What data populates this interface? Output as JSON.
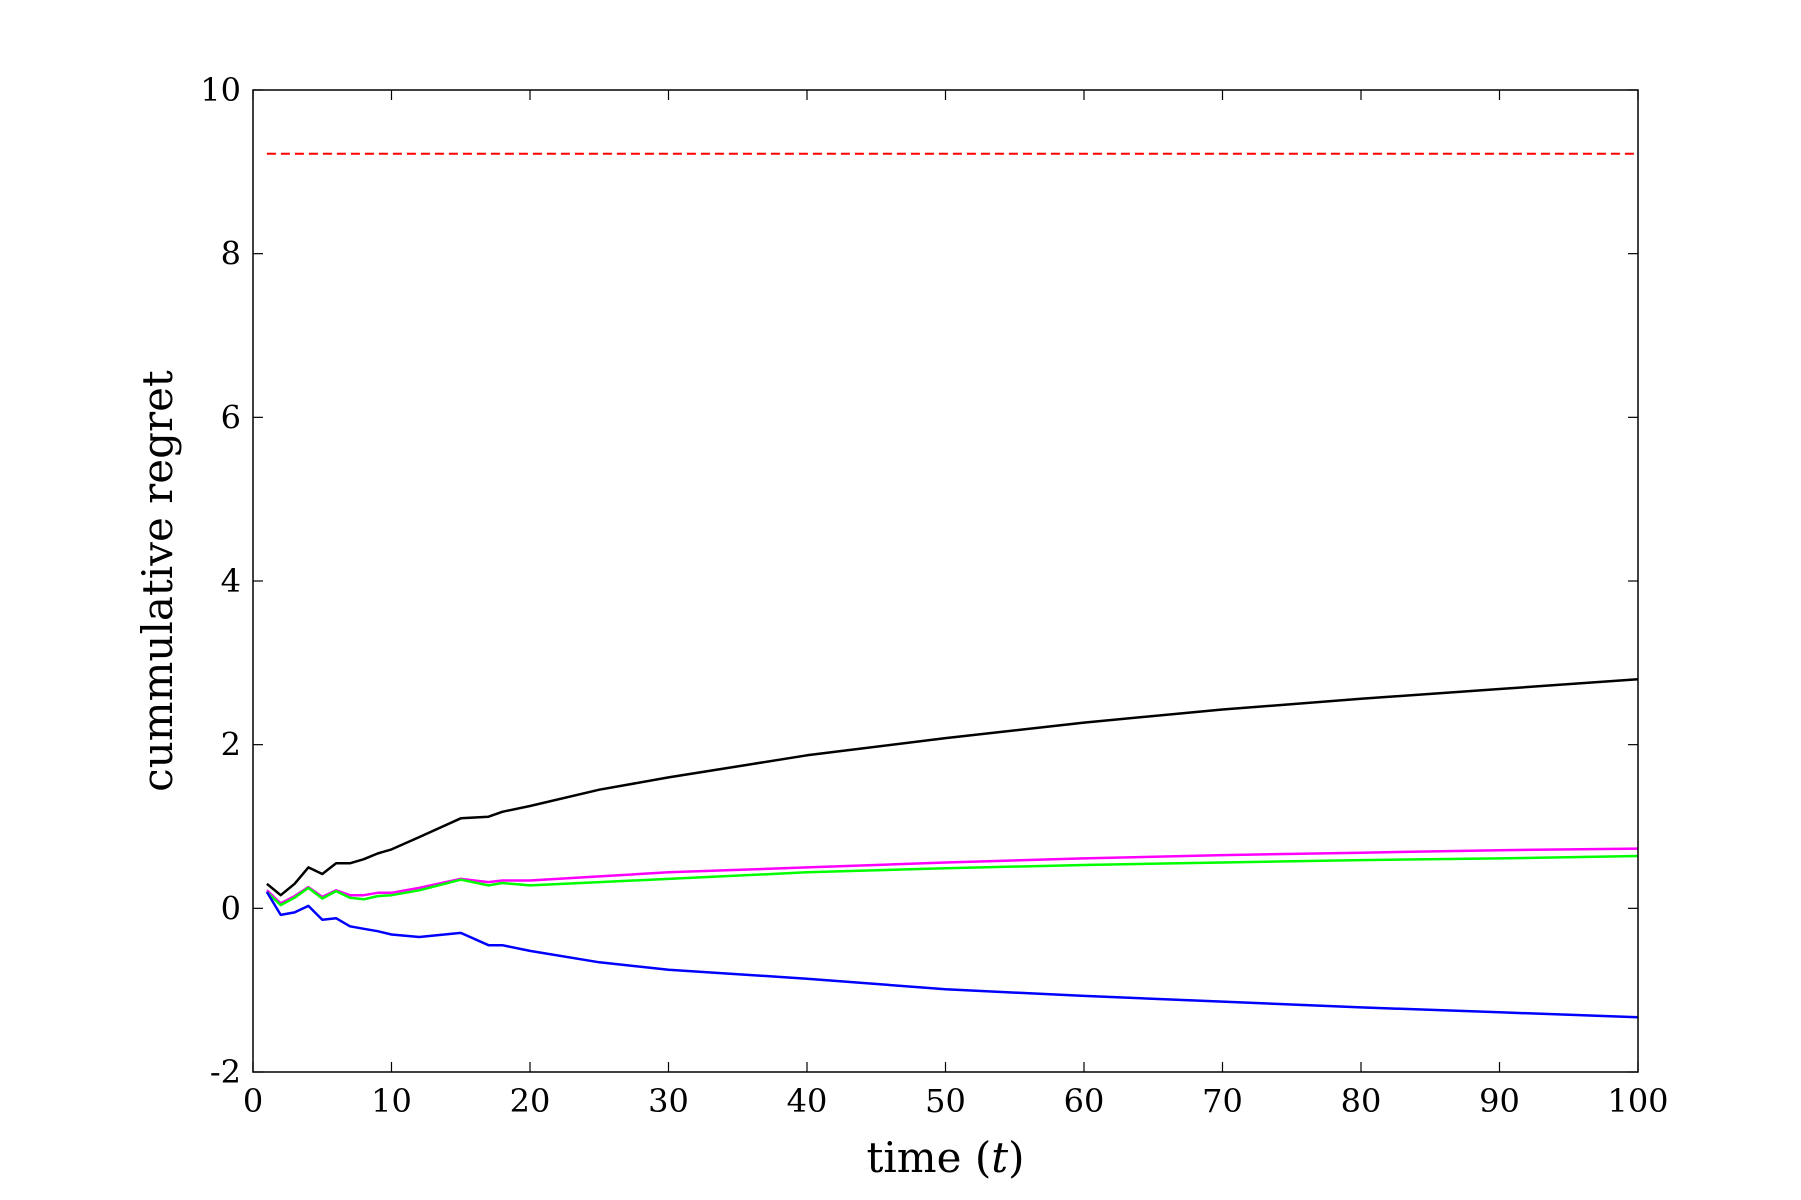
{
  "chart_data": {
    "type": "line",
    "title": "",
    "xlabel": "time (t)",
    "xlabel_parts": {
      "before": "time (",
      "var": "t",
      "after": ")"
    },
    "ylabel": "cummulative regret",
    "xlim": [
      0,
      100
    ],
    "ylim": [
      -2,
      10
    ],
    "xticks": [
      0,
      10,
      20,
      30,
      40,
      50,
      60,
      70,
      80,
      90,
      100
    ],
    "yticks": [
      -2,
      0,
      2,
      4,
      6,
      8,
      10
    ],
    "grid": false,
    "legend": "none",
    "series": [
      {
        "color": "#ff0000",
        "style": "dashed",
        "x": [
          1,
          100
        ],
        "y": [
          9.22,
          9.22
        ]
      },
      {
        "color": "#000000",
        "style": "solid",
        "x": [
          1,
          2,
          3,
          4,
          5,
          6,
          7,
          8,
          9,
          10,
          12,
          15,
          17,
          18,
          20,
          25,
          30,
          40,
          50,
          60,
          70,
          80,
          90,
          100
        ],
        "y": [
          0.3,
          0.16,
          0.3,
          0.5,
          0.42,
          0.55,
          0.55,
          0.6,
          0.67,
          0.72,
          0.87,
          1.1,
          1.12,
          1.18,
          1.25,
          1.45,
          1.6,
          1.87,
          2.08,
          2.27,
          2.43,
          2.56,
          2.68,
          2.8
        ]
      },
      {
        "color": "#ff00ff",
        "style": "solid",
        "x": [
          1,
          2,
          3,
          4,
          5,
          6,
          7,
          8,
          9,
          10,
          12,
          15,
          17,
          18,
          20,
          25,
          30,
          40,
          50,
          60,
          70,
          80,
          90,
          100
        ],
        "y": [
          0.22,
          0.06,
          0.15,
          0.26,
          0.14,
          0.22,
          0.16,
          0.16,
          0.19,
          0.19,
          0.25,
          0.36,
          0.32,
          0.34,
          0.34,
          0.39,
          0.44,
          0.5,
          0.56,
          0.61,
          0.65,
          0.68,
          0.71,
          0.73
        ]
      },
      {
        "color": "#00ff00",
        "style": "solid",
        "x": [
          1,
          2,
          3,
          4,
          5,
          6,
          7,
          8,
          9,
          10,
          12,
          15,
          17,
          18,
          20,
          25,
          30,
          40,
          50,
          60,
          70,
          80,
          90,
          100
        ],
        "y": [
          0.2,
          0.04,
          0.13,
          0.25,
          0.12,
          0.21,
          0.13,
          0.11,
          0.15,
          0.16,
          0.22,
          0.35,
          0.28,
          0.31,
          0.28,
          0.32,
          0.36,
          0.44,
          0.49,
          0.53,
          0.56,
          0.59,
          0.61,
          0.64
        ]
      },
      {
        "color": "#0000ff",
        "style": "solid",
        "x": [
          1,
          2,
          3,
          4,
          5,
          6,
          7,
          8,
          9,
          10,
          12,
          15,
          17,
          18,
          20,
          25,
          30,
          40,
          50,
          60,
          70,
          80,
          90,
          100
        ],
        "y": [
          0.2,
          -0.08,
          -0.05,
          0.03,
          -0.14,
          -0.12,
          -0.22,
          -0.25,
          -0.28,
          -0.32,
          -0.35,
          -0.3,
          -0.45,
          -0.45,
          -0.52,
          -0.66,
          -0.75,
          -0.86,
          -0.99,
          -1.07,
          -1.14,
          -1.21,
          -1.27,
          -1.33
        ]
      }
    ]
  }
}
